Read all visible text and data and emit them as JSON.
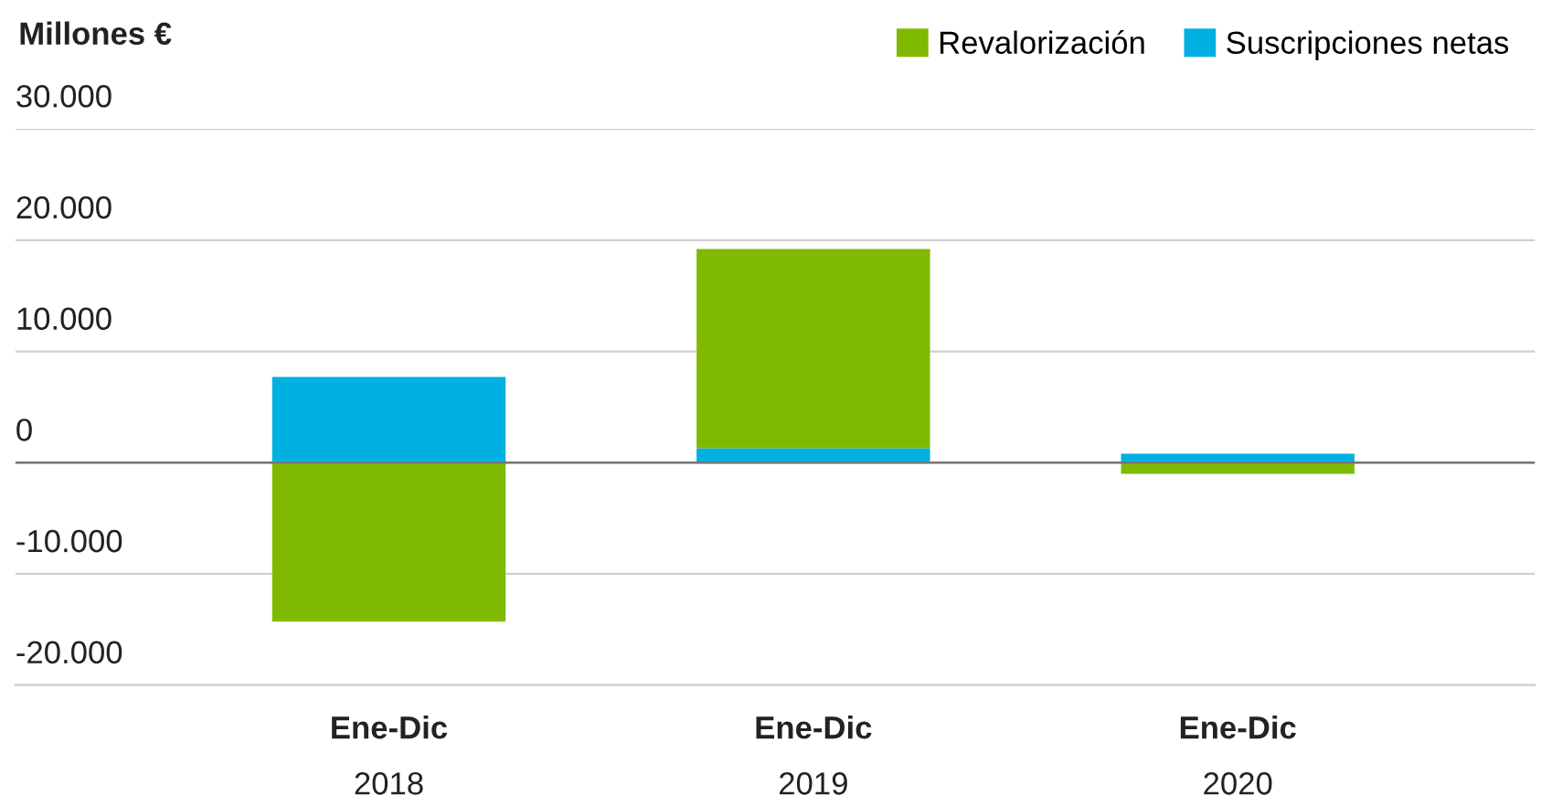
{
  "chart_data": {
    "type": "bar",
    "title": "Millones €",
    "stacked": true,
    "categories": [
      "Ene-Dic\n2018",
      "Ene-Dic\n2019",
      "Ene-Dic\n2020"
    ],
    "series": [
      {
        "name": "Suscripciones netas",
        "color": "#00b0e0",
        "values": [
          7700,
          1300,
          800
        ]
      },
      {
        "name": "Revalorización",
        "color": "#7fba00",
        "values": [
          -14300,
          17900,
          -1000
        ]
      }
    ],
    "ylim": [
      -20000,
      30000
    ],
    "yticks": [
      {
        "value": -20000,
        "label": "-20.000"
      },
      {
        "value": -10000,
        "label": "-10.000"
      },
      0,
      {
        "value": 10000,
        "label": "10.000"
      },
      {
        "value": 20000,
        "label": "20.000"
      },
      {
        "value": 30000,
        "label": "30.000"
      }
    ],
    "grid": "y",
    "legend": "top right"
  }
}
